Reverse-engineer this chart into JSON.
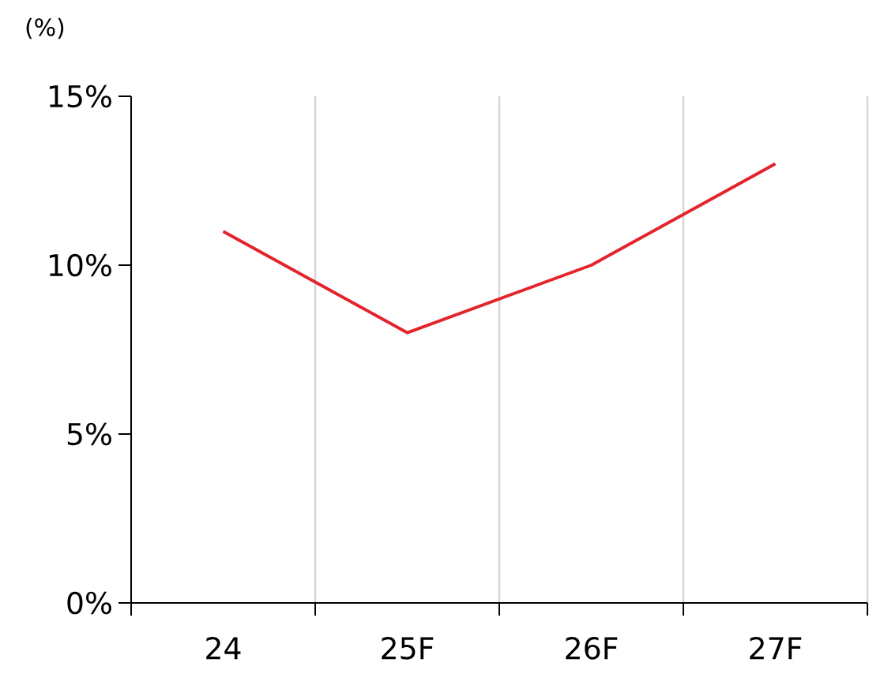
{
  "chart_data": {
    "type": "line",
    "ylabel": "(%)",
    "categories": [
      "24",
      "25F",
      "26F",
      "27F"
    ],
    "series": [
      {
        "color": "#e3242b",
        "values": [
          11,
          8,
          10,
          13
        ]
      }
    ],
    "ylim": [
      0,
      15
    ],
    "yticks": [
      {
        "value": 0,
        "label": "0%"
      },
      {
        "value": 5,
        "label": "5%"
      },
      {
        "value": 10,
        "label": "10%"
      },
      {
        "value": 15,
        "label": "15%"
      }
    ],
    "grid": "x",
    "marker": "none",
    "line_style": "solid"
  }
}
